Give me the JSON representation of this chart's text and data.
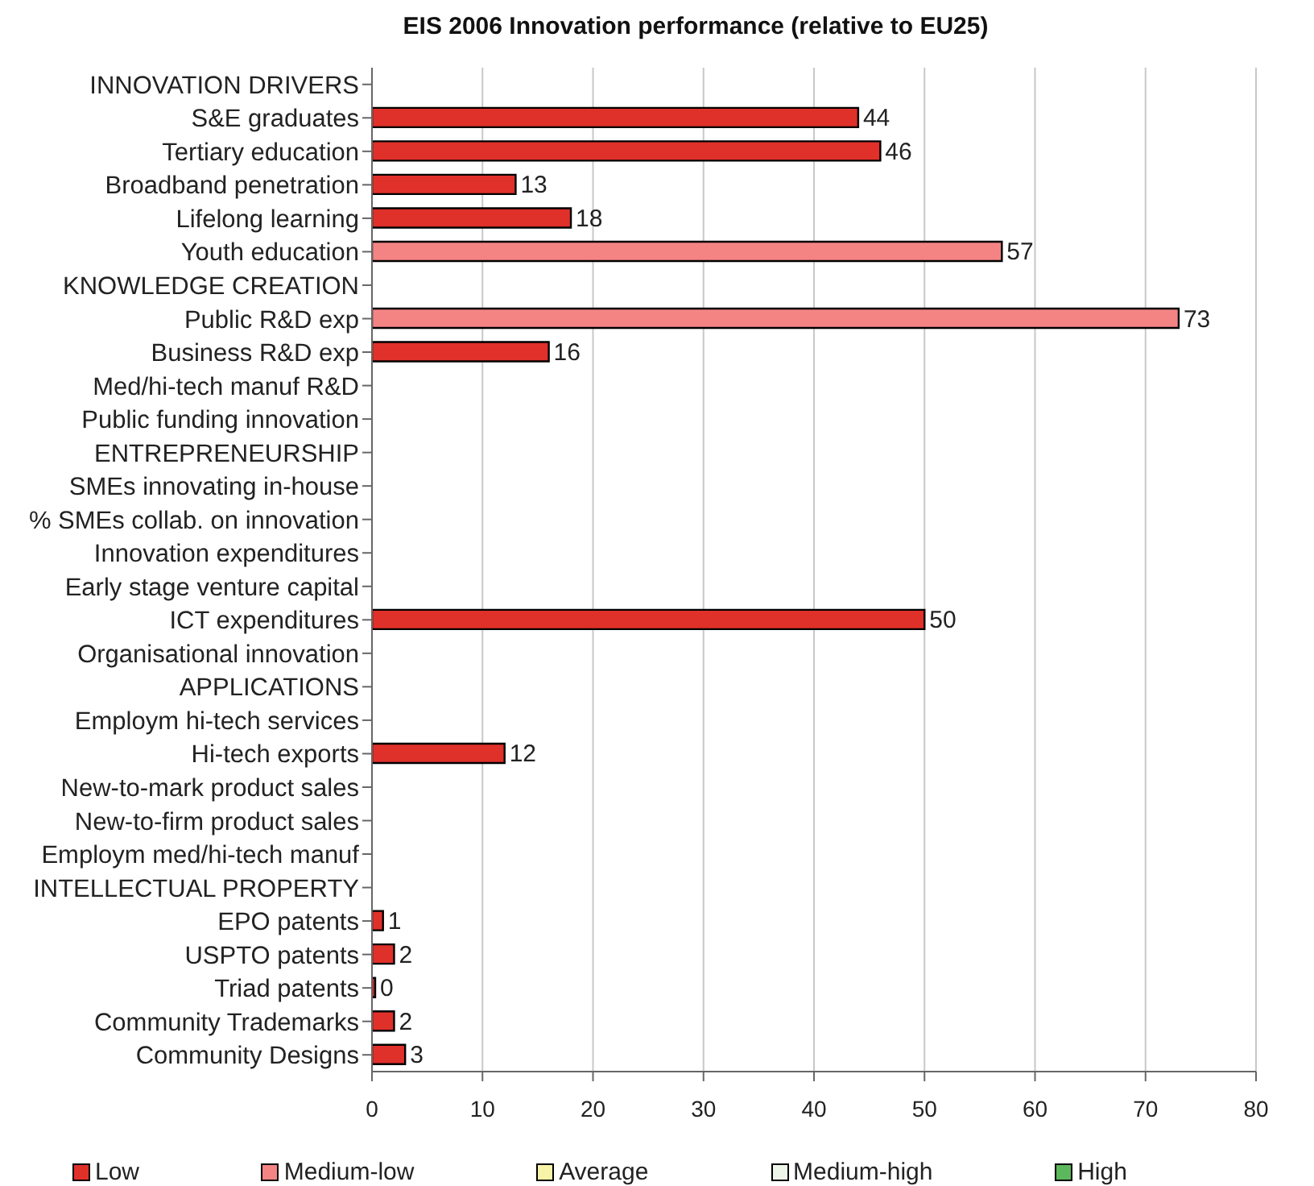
{
  "chart_data": {
    "type": "bar",
    "orientation": "horizontal",
    "stacked": true,
    "title": "EIS 2006 Innovation performance (relative to EU25)",
    "categories": [
      "INNOVATION DRIVERS",
      "S&E graduates",
      "Tertiary education",
      "Broadband penetration",
      "Lifelong learning",
      "Youth education",
      "KNOWLEDGE CREATION",
      "Public R&D exp",
      "Business R&D exp",
      "Med/hi-tech manuf R&D",
      "Public funding innovation",
      "ENTREPRENEURSHIP",
      "SMEs innovating in-house",
      "% SMEs collab. on innovation",
      "Innovation expenditures",
      "Early stage venture capital",
      "ICT expenditures",
      "Organisational innovation",
      "APPLICATIONS",
      "Employm hi-tech services",
      "Hi-tech exports",
      "New-to-mark product sales",
      "New-to-firm product sales",
      "Employm med/hi-tech manuf",
      "INTELLECTUAL PROPERTY",
      "EPO patents",
      "USPTO patents",
      "Triad patents",
      "Community Trademarks",
      "Community Designs"
    ],
    "series": [
      {
        "name": "Low",
        "color": "#e0302a",
        "values": [
          null,
          44,
          46,
          13,
          18,
          null,
          null,
          null,
          16,
          null,
          null,
          null,
          null,
          null,
          null,
          null,
          50,
          null,
          null,
          null,
          12,
          null,
          null,
          null,
          null,
          1,
          2,
          0,
          2,
          3
        ]
      },
      {
        "name": "Medium-low",
        "color": "#f48484",
        "values": [
          null,
          null,
          null,
          null,
          null,
          57,
          null,
          73,
          null,
          null,
          null,
          null,
          null,
          null,
          null,
          null,
          null,
          null,
          null,
          null,
          null,
          null,
          null,
          null,
          null,
          null,
          null,
          null,
          null,
          null
        ]
      },
      {
        "name": "Average",
        "color": "#f7f3a8",
        "values": [
          null,
          null,
          null,
          null,
          null,
          null,
          null,
          null,
          null,
          null,
          null,
          null,
          null,
          null,
          null,
          null,
          null,
          null,
          null,
          null,
          null,
          null,
          null,
          null,
          null,
          null,
          null,
          null,
          null,
          null
        ]
      },
      {
        "name": "Medium-high",
        "color": "#eef6ea",
        "values": [
          null,
          null,
          null,
          null,
          null,
          null,
          null,
          null,
          null,
          null,
          null,
          null,
          null,
          null,
          null,
          null,
          null,
          null,
          null,
          null,
          null,
          null,
          null,
          null,
          null,
          null,
          null,
          null,
          null,
          null
        ]
      },
      {
        "name": "High",
        "color": "#5cb85c",
        "values": [
          null,
          null,
          null,
          null,
          null,
          null,
          null,
          null,
          null,
          null,
          null,
          null,
          null,
          null,
          null,
          null,
          null,
          null,
          null,
          null,
          null,
          null,
          null,
          null,
          null,
          null,
          null,
          null,
          null,
          null
        ]
      }
    ],
    "xlim": [
      0,
      80
    ],
    "xticks": [
      0,
      10,
      20,
      30,
      40,
      50,
      60,
      70,
      80
    ],
    "grid": "x",
    "legend": "bottom",
    "data_labels": true
  }
}
